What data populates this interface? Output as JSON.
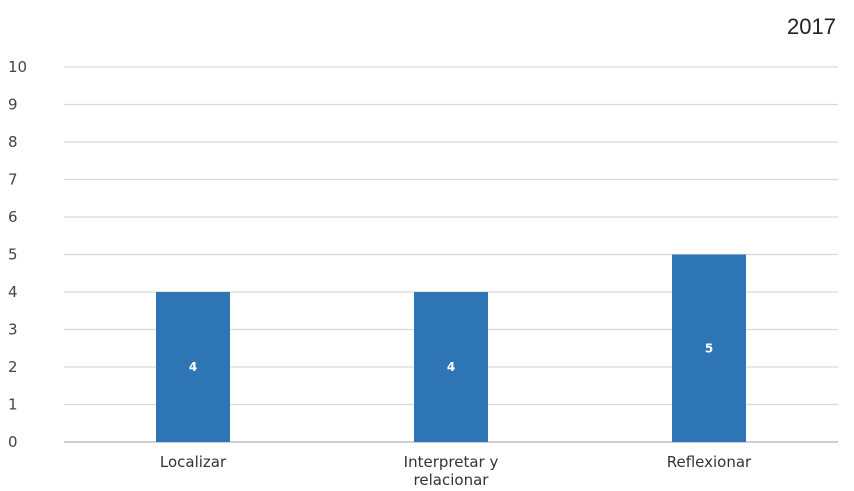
{
  "header": {
    "year": "2017"
  },
  "chart_data": {
    "type": "bar",
    "categories": [
      [
        "Localizar"
      ],
      [
        "Interpretar y",
        "relacionar"
      ],
      [
        "Reflexionar"
      ]
    ],
    "values": [
      4,
      4,
      5
    ],
    "data_labels": [
      "4",
      "4",
      "5"
    ],
    "ylim": [
      0,
      10
    ],
    "yticks": [
      0,
      1,
      2,
      3,
      4,
      5,
      6,
      7,
      8,
      9,
      10
    ],
    "bar_color": "#2e75b6",
    "grid": true,
    "legend": "none"
  }
}
